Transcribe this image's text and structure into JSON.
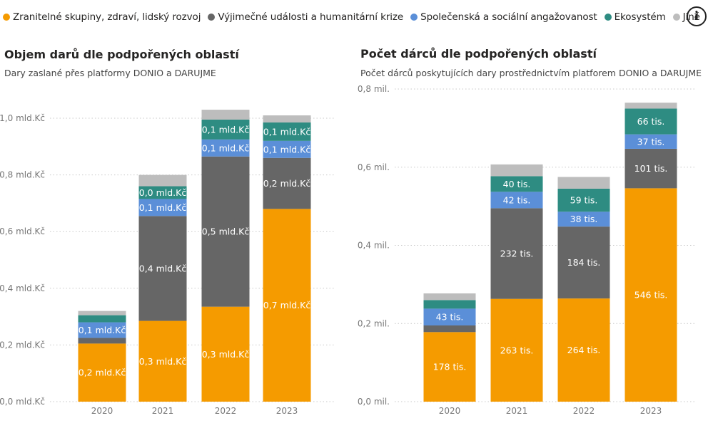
{
  "legend": {
    "items": [
      {
        "label": "Zranitelné skupiny, zdraví, lidský rozvoj",
        "color": "#F59B00"
      },
      {
        "label": "Výjimečné události a humanitární krize",
        "color": "#666666"
      },
      {
        "label": "Společenská a sociální angažovanost",
        "color": "#5B8FD8"
      },
      {
        "label": "Ekosystém",
        "color": "#2E8C82"
      },
      {
        "label": "Jiné",
        "color": "#BDBDBD"
      }
    ]
  },
  "info_icon": "info-icon",
  "chart_data": [
    {
      "type": "bar",
      "stacked": true,
      "title": "Objem darů dle podpořených oblastí",
      "subtitle": "Dary zaslané přes platformy DONIO a DARUJME",
      "categories": [
        "2020",
        "2021",
        "2022",
        "2023"
      ],
      "ylim": [
        0,
        1.0
      ],
      "yticks": [
        0,
        0.2,
        0.4,
        0.6,
        0.8,
        1.0
      ],
      "ytick_labels": [
        "0,0 mld.Kč",
        "0,2 mld.Kč",
        "0,4 mld.Kč",
        "0,6 mld.Kč",
        "0,8 mld.Kč",
        "1,0 mld.Kč"
      ],
      "grid": true,
      "series": [
        {
          "name": "Zranitelné skupiny, zdraví, lidský rozvoj",
          "color": "#F59B00",
          "values": [
            0.205,
            0.285,
            0.335,
            0.68
          ],
          "labels": [
            "0,2 mld.Kč",
            "0,3 mld.Kč",
            "0,3 mld.Kč",
            "0,7 mld.Kč"
          ]
        },
        {
          "name": "Výjimečné události a humanitární krize",
          "color": "#666666",
          "values": [
            0.02,
            0.37,
            0.53,
            0.18
          ],
          "labels": [
            "",
            "0,4 mld.Kč",
            "0,5 mld.Kč",
            "0,2 mld.Kč"
          ]
        },
        {
          "name": "Společenská a sociální angažovanost",
          "color": "#5B8FD8",
          "values": [
            0.055,
            0.06,
            0.06,
            0.06
          ],
          "labels": [
            "0,1 mld.Kč",
            "0,1 mld.Kč",
            "0,1 mld.Kč",
            "0,1 mld.Kč"
          ]
        },
        {
          "name": "Ekosystém",
          "color": "#2E8C82",
          "values": [
            0.025,
            0.045,
            0.07,
            0.065
          ],
          "labels": [
            "",
            "0,0 mld.Kč",
            "0,1 mld.Kč",
            "0,1 mld.Kč"
          ]
        },
        {
          "name": "Jiné",
          "color": "#BDBDBD",
          "values": [
            0.015,
            0.04,
            0.035,
            0.025
          ],
          "labels": [
            "",
            "",
            "",
            ""
          ]
        }
      ]
    },
    {
      "type": "bar",
      "stacked": true,
      "title": "Počet dárců dle podpořených oblastí",
      "subtitle": "Počet dárců poskytujících dary prostřednictvím platforem DONIO a DARUJME",
      "categories": [
        "2020",
        "2021",
        "2022",
        "2023"
      ],
      "ylim": [
        0,
        0.8
      ],
      "yticks": [
        0,
        0.2,
        0.4,
        0.6,
        0.8
      ],
      "ytick_labels": [
        "0,0 mil.",
        "0,2 mil.",
        "0,4 mil.",
        "0,6 mil.",
        "0,8 mil."
      ],
      "grid": true,
      "series": [
        {
          "name": "Zranitelné skupiny, zdraví, lidský rozvoj",
          "color": "#F59B00",
          "values": [
            0.178,
            0.263,
            0.264,
            0.546
          ],
          "labels": [
            "178 tis.",
            "263 tis.",
            "264 tis.",
            "546 tis."
          ]
        },
        {
          "name": "Výjimečné události a humanitární krize",
          "color": "#666666",
          "values": [
            0.017,
            0.232,
            0.184,
            0.101
          ],
          "labels": [
            "",
            "232 tis.",
            "184 tis.",
            "101 tis."
          ]
        },
        {
          "name": "Společenská a sociální angažovanost",
          "color": "#5B8FD8",
          "values": [
            0.043,
            0.042,
            0.038,
            0.037
          ],
          "labels": [
            "43 tis.",
            "42 tis.",
            "38 tis.",
            "37 tis."
          ]
        },
        {
          "name": "Ekosystém",
          "color": "#2E8C82",
          "values": [
            0.022,
            0.04,
            0.059,
            0.066
          ],
          "labels": [
            "",
            "40 tis.",
            "59 tis.",
            "66 tis."
          ]
        },
        {
          "name": "Jiné",
          "color": "#BDBDBD",
          "values": [
            0.017,
            0.03,
            0.03,
            0.015
          ],
          "labels": [
            "",
            "",
            "",
            ""
          ]
        }
      ]
    }
  ]
}
